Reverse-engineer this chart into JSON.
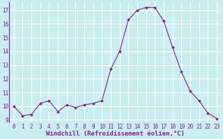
{
  "x": [
    0,
    1,
    2,
    3,
    4,
    5,
    6,
    7,
    8,
    9,
    10,
    11,
    12,
    13,
    14,
    15,
    16,
    17,
    18,
    19,
    20,
    21,
    22,
    23
  ],
  "y": [
    10.0,
    9.3,
    9.4,
    10.2,
    10.4,
    9.6,
    10.1,
    9.9,
    10.1,
    10.2,
    10.4,
    12.7,
    14.0,
    16.3,
    17.0,
    17.2,
    17.2,
    16.2,
    14.3,
    12.5,
    11.1,
    10.4,
    9.5,
    9.1
  ],
  "line_color": "#8b1a8b",
  "marker": "D",
  "marker_size": 2.0,
  "bg_color": "#c8eef0",
  "grid_color": "#ffffff",
  "xlabel": "Windchill (Refroidissement éolien,°C)",
  "ylim": [
    8.8,
    17.6
  ],
  "yticks": [
    9,
    10,
    11,
    12,
    13,
    14,
    15,
    16,
    17
  ],
  "xlim": [
    -0.5,
    23.5
  ],
  "xticks": [
    0,
    1,
    2,
    3,
    4,
    5,
    6,
    7,
    8,
    9,
    10,
    11,
    12,
    13,
    14,
    15,
    16,
    17,
    18,
    19,
    20,
    21,
    22,
    23
  ],
  "tick_fontsize": 5.5,
  "xlabel_fontsize": 6.5,
  "tick_color": "#8b1a8b"
}
